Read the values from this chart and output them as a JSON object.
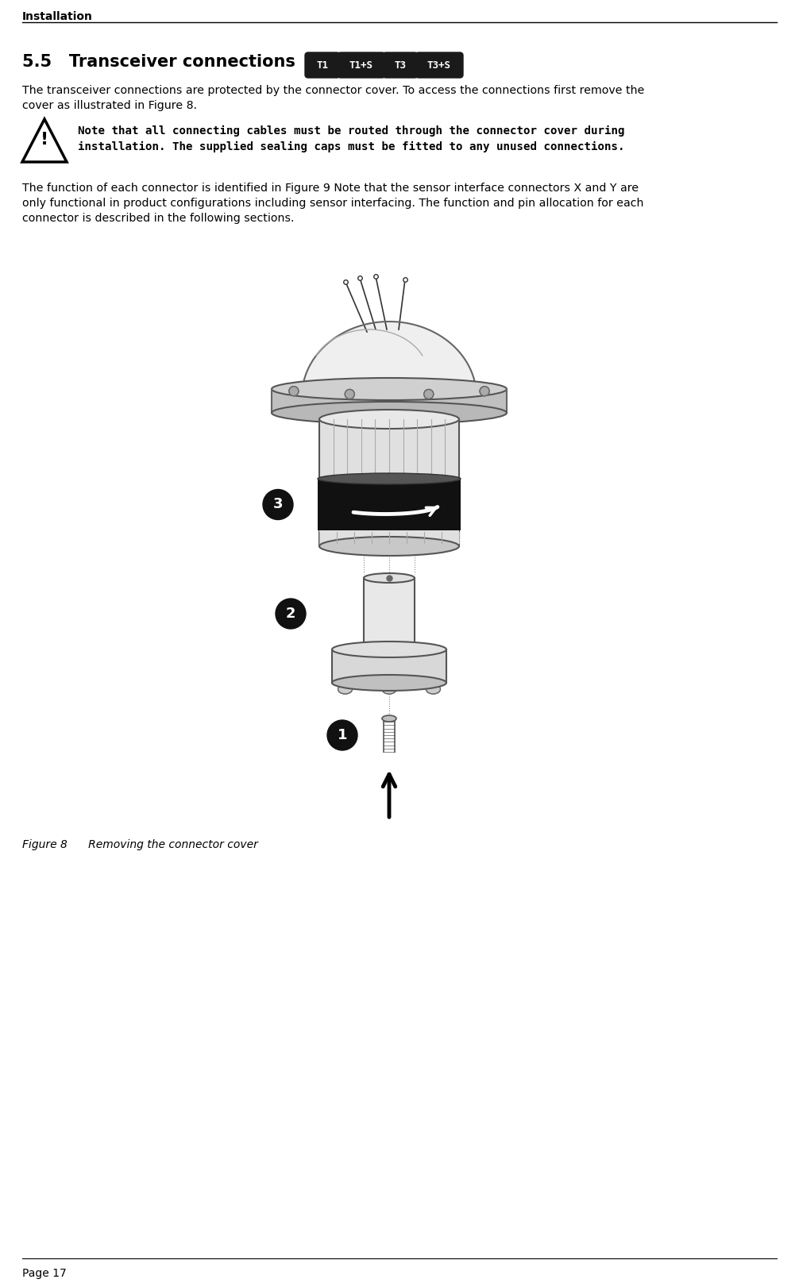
{
  "page_header": "Installation",
  "section_number": "5.5",
  "section_title": "Transceiver connections",
  "connector_labels": [
    "T1",
    "T1+S",
    "T3",
    "T3+S"
  ],
  "connector_bg_color": "#1a1a1a",
  "connector_text_color": "#ffffff",
  "body_text_1a": "The transceiver connections are protected by the connector cover. To access the connections first remove the",
  "body_text_1b": "cover as illustrated in Figure 8.",
  "warning_text_line1": "Note that all connecting cables must be routed through the connector cover during",
  "warning_text_line2": "installation. The supplied sealing caps must be fitted to any unused connections.",
  "body_text_2a": "The function of each connector is identified in Figure 9 Note that the sensor interface connectors X and Y are",
  "body_text_2b": "only functional in product configurations including sensor interfacing. The function and pin allocation for each",
  "body_text_2c": "connector is described in the following sections.",
  "figure_caption": "Figure 8      Removing the connector cover",
  "page_number": "Page 17",
  "bg_color": "#ffffff",
  "text_color": "#000000"
}
